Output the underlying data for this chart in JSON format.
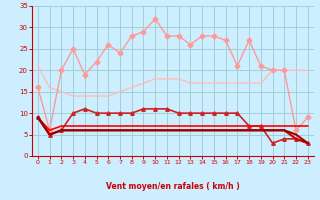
{
  "xlabel": "Vent moyen/en rafales ( km/h )",
  "x": [
    0,
    1,
    2,
    3,
    4,
    5,
    6,
    7,
    8,
    9,
    10,
    11,
    12,
    13,
    14,
    15,
    16,
    17,
    18,
    19,
    20,
    21,
    22,
    23
  ],
  "lines": [
    {
      "y": [
        21,
        16,
        15,
        14,
        14,
        14,
        14,
        15,
        16,
        17,
        18,
        18,
        18,
        17,
        17,
        17,
        17,
        17,
        17,
        17,
        20,
        20,
        20,
        20
      ],
      "color": "#ffbbbb",
      "lw": 1.0,
      "marker": null,
      "ms": 0
    },
    {
      "y": [
        16,
        6,
        20,
        25,
        19,
        22,
        26,
        24,
        28,
        29,
        32,
        28,
        28,
        26,
        28,
        28,
        27,
        21,
        27,
        21,
        20,
        20,
        6,
        9
      ],
      "color": "#ff9999",
      "lw": 1.0,
      "marker": "D",
      "ms": 2.5
    },
    {
      "y": [
        9,
        5,
        6,
        10,
        11,
        10,
        10,
        10,
        10,
        11,
        11,
        11,
        10,
        10,
        10,
        10,
        10,
        10,
        7,
        7,
        3,
        4,
        4,
        3
      ],
      "color": "#cc2222",
      "lw": 1.2,
      "marker": "^",
      "ms": 2.5
    },
    {
      "y": [
        9,
        6,
        7,
        7,
        7,
        7,
        7,
        7,
        7,
        7,
        7,
        7,
        7,
        7,
        7,
        7,
        7,
        7,
        7,
        7,
        7,
        7,
        7,
        7
      ],
      "color": "#ff0000",
      "lw": 1.2,
      "marker": null,
      "ms": 0
    },
    {
      "y": [
        9,
        5,
        6,
        6,
        6,
        6,
        6,
        6,
        6,
        6,
        6,
        6,
        6,
        6,
        6,
        6,
        6,
        6,
        6,
        6,
        6,
        6,
        4,
        3
      ],
      "color": "#cc0000",
      "lw": 1.5,
      "marker": null,
      "ms": 0
    },
    {
      "y": [
        9,
        5,
        6,
        6,
        6,
        6,
        6,
        6,
        6,
        6,
        6,
        6,
        6,
        6,
        6,
        6,
        6,
        6,
        6,
        6,
        6,
        6,
        5,
        3
      ],
      "color": "#990000",
      "lw": 1.5,
      "marker": null,
      "ms": 0
    }
  ],
  "ylim": [
    0,
    35
  ],
  "yticks": [
    0,
    5,
    10,
    15,
    20,
    25,
    30,
    35
  ],
  "bg_color": "#cceeff",
  "grid_color": "#99cccc",
  "tick_color": "#cc0000",
  "label_color": "#cc0000",
  "arrow_color": "#dd3333",
  "spine_color": "#cc0000"
}
